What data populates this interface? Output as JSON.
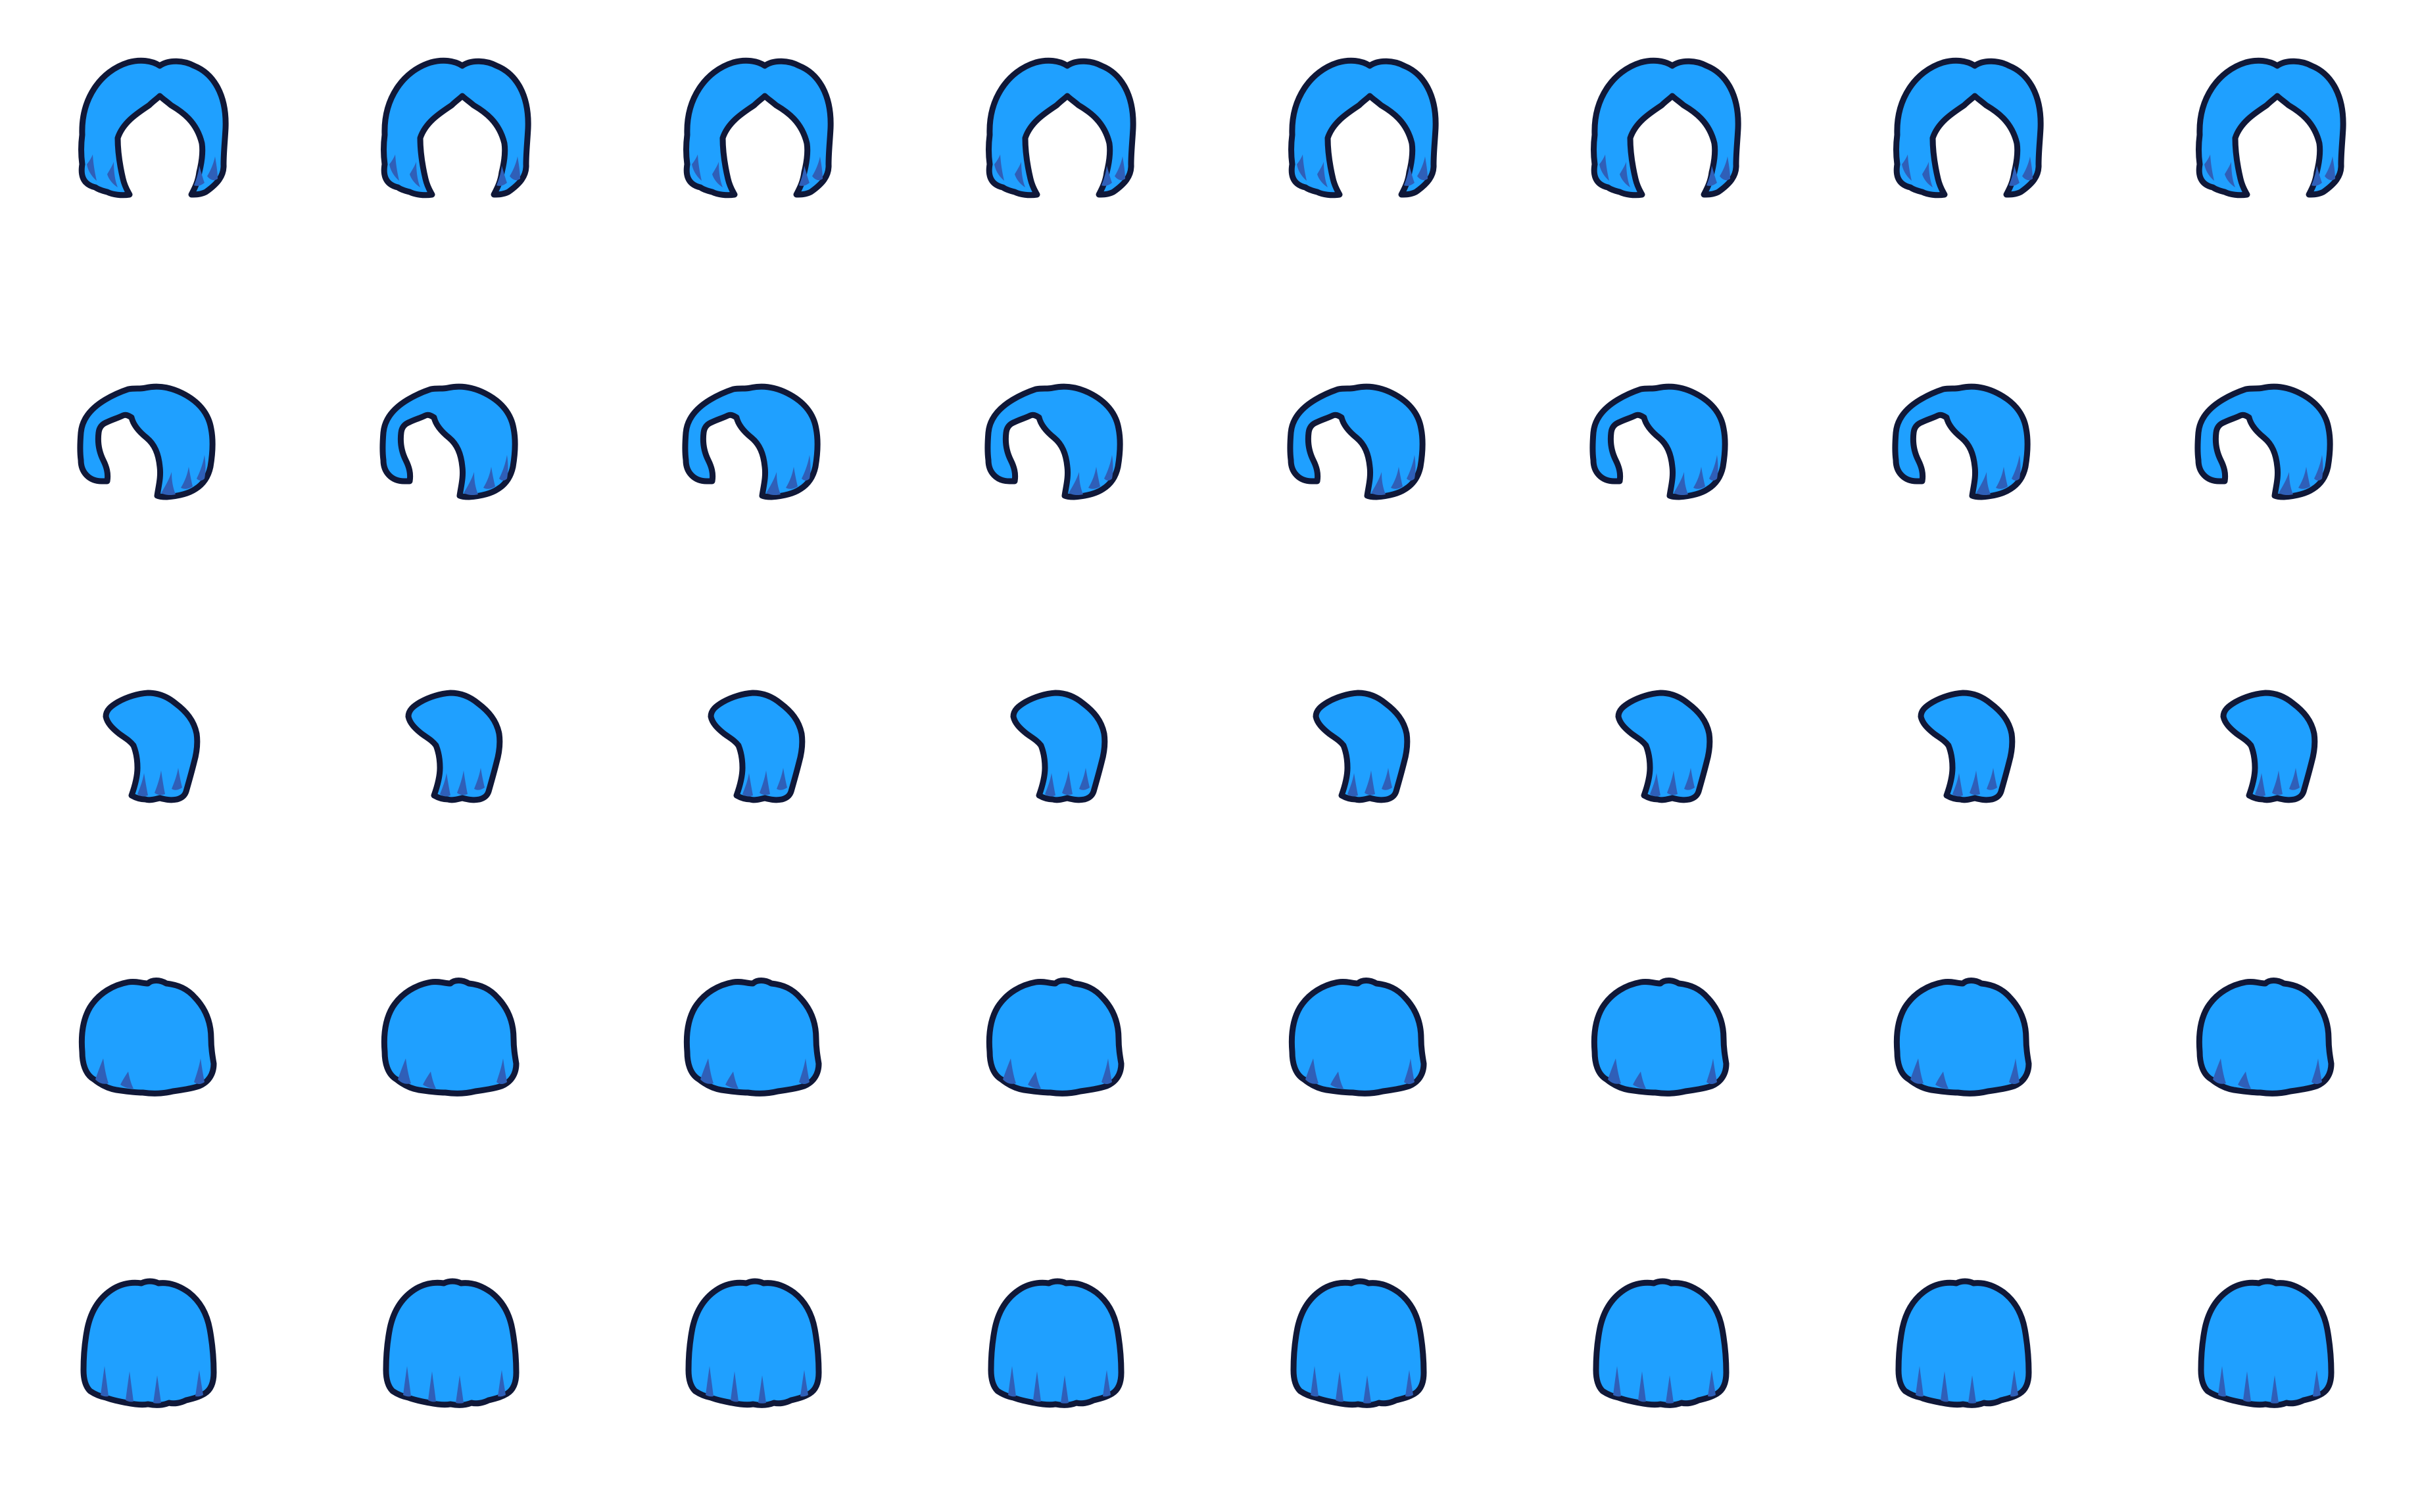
{
  "sheet": {
    "background": "#ffffff",
    "columns": 8,
    "colors": {
      "fill": "#1fa0ff",
      "outline": "#101838",
      "shadow": "#2f5fb8"
    },
    "rows": [
      {
        "name": "hair-horseshoe",
        "frames": 8
      },
      {
        "name": "hair-swept",
        "frames": 8
      },
      {
        "name": "hair-side-tuft",
        "frames": 8
      },
      {
        "name": "hair-bob-round",
        "frames": 8
      },
      {
        "name": "hair-bob-long",
        "frames": 8
      }
    ]
  }
}
